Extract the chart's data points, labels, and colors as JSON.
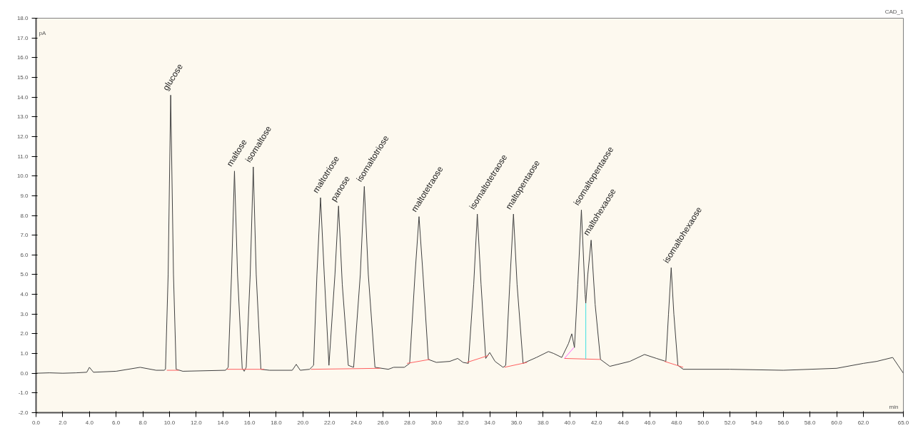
{
  "chart_data": {
    "type": "line",
    "title": "CAD_1",
    "xlabel": "min",
    "ylabel": "pA",
    "xlim": [
      0,
      65
    ],
    "ylim": [
      -2,
      18
    ],
    "xticks": [
      {
        "value": 0,
        "label": "0.0"
      },
      {
        "value": 2,
        "label": "2.0"
      },
      {
        "value": 4,
        "label": "4.0"
      },
      {
        "value": 6,
        "label": "6.0"
      },
      {
        "value": 8,
        "label": "8.0"
      },
      {
        "value": 10,
        "label": "10.0"
      },
      {
        "value": 12,
        "label": "12.0"
      },
      {
        "value": 14,
        "label": "14.0"
      },
      {
        "value": 16,
        "label": "16.0"
      },
      {
        "value": 18,
        "label": "18.0"
      },
      {
        "value": 20,
        "label": "20.0"
      },
      {
        "value": 22,
        "label": "22.0"
      },
      {
        "value": 24,
        "label": "24.0"
      },
      {
        "value": 26,
        "label": "26.0"
      },
      {
        "value": 28,
        "label": "28.0"
      },
      {
        "value": 30,
        "label": "30.0"
      },
      {
        "value": 32,
        "label": "32.0"
      },
      {
        "value": 34,
        "label": "34.0"
      },
      {
        "value": 36,
        "label": "36.0"
      },
      {
        "value": 38,
        "label": "38.0"
      },
      {
        "value": 40,
        "label": "40.0"
      },
      {
        "value": 42,
        "label": "42.0"
      },
      {
        "value": 44,
        "label": "44.0"
      },
      {
        "value": 46,
        "label": "46.0"
      },
      {
        "value": 48,
        "label": "48.0"
      },
      {
        "value": 50,
        "label": "50.0"
      },
      {
        "value": 52,
        "label": "52.0"
      },
      {
        "value": 54,
        "label": "54.0"
      },
      {
        "value": 56,
        "label": "56.0"
      },
      {
        "value": 58,
        "label": "58.0"
      },
      {
        "value": 60,
        "label": "60.0"
      },
      {
        "value": 62,
        "label": "62.0"
      },
      {
        "value": 65,
        "label": "65.0"
      }
    ],
    "yticks": [
      {
        "value": -2,
        "label": "-2.0"
      },
      {
        "value": -1,
        "label": "-1.0"
      },
      {
        "value": 0,
        "label": "0.0"
      },
      {
        "value": 1,
        "label": "1.0"
      },
      {
        "value": 2,
        "label": "2.0"
      },
      {
        "value": 3,
        "label": "3.0"
      },
      {
        "value": 4,
        "label": "4.0"
      },
      {
        "value": 5,
        "label": "5.0"
      },
      {
        "value": 6,
        "label": "6.0"
      },
      {
        "value": 7,
        "label": "7.0"
      },
      {
        "value": 8,
        "label": "8.0"
      },
      {
        "value": 9,
        "label": "9.0"
      },
      {
        "value": 10,
        "label": "10.0"
      },
      {
        "value": 11,
        "label": "11.0"
      },
      {
        "value": 12,
        "label": "12.0"
      },
      {
        "value": 13,
        "label": "13.0"
      },
      {
        "value": 14,
        "label": "14.0"
      },
      {
        "value": 15,
        "label": "15.0"
      },
      {
        "value": 16,
        "label": "16.0"
      },
      {
        "value": 17,
        "label": "17.0"
      },
      {
        "value": 18,
        "label": "18.0"
      }
    ],
    "grid": false,
    "marker": "none",
    "line_style": "solid",
    "series": [
      {
        "color": "#404040",
        "x": [
          0,
          1,
          2,
          3,
          3.8,
          4.0,
          4.3,
          6,
          7.8,
          9,
          9.6,
          9.7,
          9.9,
          10.09,
          10.3,
          10.5,
          11,
          14.2,
          14.4,
          14.65,
          14.87,
          15.1,
          15.45,
          15.6,
          15.75,
          16.05,
          16.28,
          16.5,
          16.85,
          17.5,
          19.2,
          19.5,
          19.8,
          20.5,
          20.8,
          21.05,
          21.32,
          21.6,
          21.95,
          22.4,
          22.67,
          22.95,
          23.4,
          23.8,
          24.3,
          24.6,
          24.9,
          25.4,
          26.4,
          26.8,
          27.6,
          28.0,
          28.4,
          28.7,
          29.0,
          29.4,
          30.0,
          31.0,
          31.6,
          32.0,
          32.4,
          32.8,
          33.07,
          33.35,
          33.7,
          34.0,
          34.4,
          35.0,
          35.2,
          35.5,
          35.78,
          36.05,
          36.5,
          37.5,
          38.4,
          38.8,
          39.4,
          39.9,
          40.15,
          40.35,
          40.6,
          40.87,
          41.15,
          41.2,
          41.35,
          41.6,
          41.9,
          42.3,
          43.0,
          44.5,
          45.6,
          46.5,
          47.2,
          47.4,
          47.6,
          47.8,
          48.1,
          48.5,
          52,
          56,
          60,
          62,
          63,
          64.2,
          64.6,
          65
        ],
        "values": [
          0.0,
          0.02,
          0.0,
          0.02,
          0.05,
          0.3,
          0.05,
          0.1,
          0.3,
          0.15,
          0.15,
          0.2,
          5.0,
          14.1,
          5.0,
          0.2,
          0.1,
          0.15,
          0.3,
          5.0,
          10.25,
          5.0,
          0.25,
          0.1,
          0.3,
          5.0,
          10.46,
          5.0,
          0.2,
          0.15,
          0.15,
          0.45,
          0.15,
          0.2,
          0.4,
          5.0,
          8.9,
          5.0,
          0.4,
          5.0,
          8.48,
          4.5,
          0.4,
          0.3,
          5.0,
          9.47,
          5.0,
          0.3,
          0.2,
          0.3,
          0.3,
          0.5,
          5.0,
          7.94,
          5.0,
          0.7,
          0.55,
          0.6,
          0.75,
          0.55,
          0.5,
          4.5,
          8.07,
          4.5,
          0.75,
          1.05,
          0.6,
          0.3,
          0.4,
          4.5,
          8.07,
          4.5,
          0.5,
          0.8,
          1.1,
          1.0,
          0.8,
          1.5,
          2.0,
          1.3,
          4.5,
          8.28,
          4.0,
          3.55,
          5.0,
          6.75,
          3.5,
          0.7,
          0.35,
          0.6,
          0.95,
          0.75,
          0.6,
          3.0,
          5.35,
          3.0,
          0.4,
          0.2,
          0.2,
          0.15,
          0.25,
          0.5,
          0.6,
          0.8,
          0.4,
          0.0
        ]
      },
      {
        "color": "#ff6060",
        "x": [
          9.8,
          10.7
        ],
        "values": [
          0.15,
          0.15
        ]
      },
      {
        "color": "#ff6060",
        "x": [
          14.3,
          17.1
        ],
        "values": [
          0.2,
          0.2
        ]
      },
      {
        "color": "#ff6060",
        "x": [
          20.6,
          25.8
        ],
        "values": [
          0.2,
          0.25
        ]
      },
      {
        "color": "#ff6060",
        "x": [
          27.8,
          29.5
        ],
        "values": [
          0.5,
          0.7
        ]
      },
      {
        "color": "#ff6060",
        "x": [
          32.3,
          33.9
        ],
        "values": [
          0.55,
          0.9
        ]
      },
      {
        "color": "#ff6060",
        "x": [
          35.1,
          36.8
        ],
        "values": [
          0.3,
          0.55
        ]
      },
      {
        "color": "#ff6060",
        "x": [
          39.6,
          42.3
        ],
        "values": [
          0.75,
          0.7
        ]
      },
      {
        "color": "#ff6060",
        "x": [
          47.1,
          48.5
        ],
        "values": [
          0.6,
          0.3
        ]
      },
      {
        "color": "#ff66ff",
        "x": [
          39.6,
          40.3
        ],
        "values": [
          0.75,
          1.3
        ]
      },
      {
        "color": "#40e0e0",
        "x": [
          41.2,
          41.2
        ],
        "values": [
          0.72,
          3.55
        ]
      }
    ],
    "annotations": [
      {
        "text": "glucose",
        "x": 10.09,
        "y": 14.1
      },
      {
        "text": "maltose",
        "x": 14.87,
        "y": 10.25
      },
      {
        "text": "isomaltose",
        "x": 16.28,
        "y": 10.46
      },
      {
        "text": "maltotriose",
        "x": 21.32,
        "y": 8.9
      },
      {
        "text": "panose",
        "x": 22.67,
        "y": 8.48
      },
      {
        "text": "isomaltotriose",
        "x": 24.6,
        "y": 9.47
      },
      {
        "text": "maltotetraose",
        "x": 28.7,
        "y": 7.94
      },
      {
        "text": "isomaltotetraose",
        "x": 33.07,
        "y": 8.07
      },
      {
        "text": "maltopentaose",
        "x": 35.78,
        "y": 8.07
      },
      {
        "text": "isomaltopentaose",
        "x": 40.87,
        "y": 8.28
      },
      {
        "text": "maltohexaose",
        "x": 41.6,
        "y": 6.75
      },
      {
        "text": "isomaltohexaose",
        "x": 47.6,
        "y": 5.35
      }
    ]
  }
}
